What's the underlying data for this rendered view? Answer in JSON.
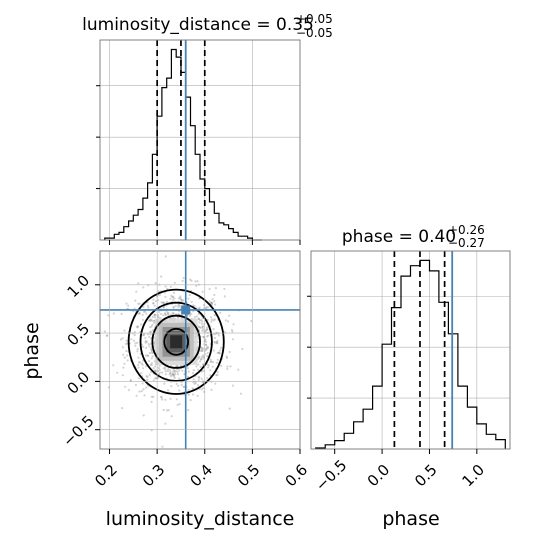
{
  "chart_data": {
    "type": "corner",
    "parameters": [
      "luminosity_distance",
      "phase"
    ],
    "truth": {
      "luminosity_distance": 0.36,
      "phase": 0.74
    },
    "panels": [
      {
        "position": "top-left",
        "type": "histogram",
        "parameter": "luminosity_distance",
        "title": {
          "prefix": "luminosity_distance = ",
          "value": "0.35",
          "plus": "+0.05",
          "minus": "−0.05"
        },
        "xlim": [
          0.18,
          0.6
        ],
        "bin_edges": [
          0.19,
          0.2,
          0.21,
          0.22,
          0.23,
          0.24,
          0.25,
          0.26,
          0.27,
          0.28,
          0.29,
          0.3,
          0.31,
          0.32,
          0.33,
          0.34,
          0.35,
          0.36,
          0.37,
          0.38,
          0.39,
          0.4,
          0.41,
          0.42,
          0.43,
          0.44,
          0.45,
          0.46,
          0.47,
          0.48,
          0.49,
          0.5,
          0.51,
          0.52
        ],
        "counts": [
          1,
          1,
          3,
          4,
          7,
          10,
          13,
          16,
          22,
          30,
          45,
          65,
          80,
          85,
          100,
          96,
          88,
          75,
          60,
          45,
          32,
          27,
          20,
          14,
          9,
          8,
          6,
          4,
          2,
          2,
          1,
          0,
          0
        ],
        "quantile_lines": [
          0.3,
          0.35,
          0.4
        ],
        "xtick_labels": [
          "0.2",
          "0.3",
          "0.4",
          "0.5",
          "0.6"
        ],
        "show_xtick_labels": false,
        "grid": true
      },
      {
        "position": "bottom-left",
        "type": "2d-density",
        "xparameter": "luminosity_distance",
        "yparameter": "phase",
        "xlim": [
          0.18,
          0.6
        ],
        "ylim": [
          -0.7,
          1.35
        ],
        "center": [
          0.34,
          0.41
        ],
        "xtick_labels": [
          "0.2",
          "0.3",
          "0.4",
          "0.5",
          "0.6"
        ],
        "ytick_labels": [
          "−0.5",
          "0.0",
          "0.5",
          "1.0"
        ],
        "xlabel": "luminosity_distance",
        "ylabel": "phase",
        "contour_levels": [
          0.5,
          1.0,
          1.5,
          2.0
        ],
        "grid": true
      },
      {
        "position": "bottom-right",
        "type": "histogram",
        "parameter": "phase",
        "title": {
          "prefix": "phase = ",
          "value": "0.40",
          "plus": "+0.26",
          "minus": "−0.27"
        },
        "xlim": [
          -0.75,
          1.35
        ],
        "bin_edges": [
          -0.7,
          -0.6,
          -0.5,
          -0.4,
          -0.3,
          -0.2,
          -0.1,
          0.0,
          0.1,
          0.2,
          0.3,
          0.4,
          0.5,
          0.6,
          0.7,
          0.8,
          0.9,
          1.0,
          1.1,
          1.2,
          1.3
        ],
        "counts": [
          1,
          4,
          8,
          15,
          26,
          38,
          60,
          100,
          135,
          165,
          175,
          180,
          170,
          140,
          110,
          60,
          40,
          24,
          14,
          9
        ],
        "quantile_lines": [
          0.13,
          0.4,
          0.66
        ],
        "xtick_labels": [
          "−0.5",
          "0.0",
          "0.5",
          "1.0"
        ],
        "xlabel": "phase",
        "grid": true
      }
    ]
  }
}
